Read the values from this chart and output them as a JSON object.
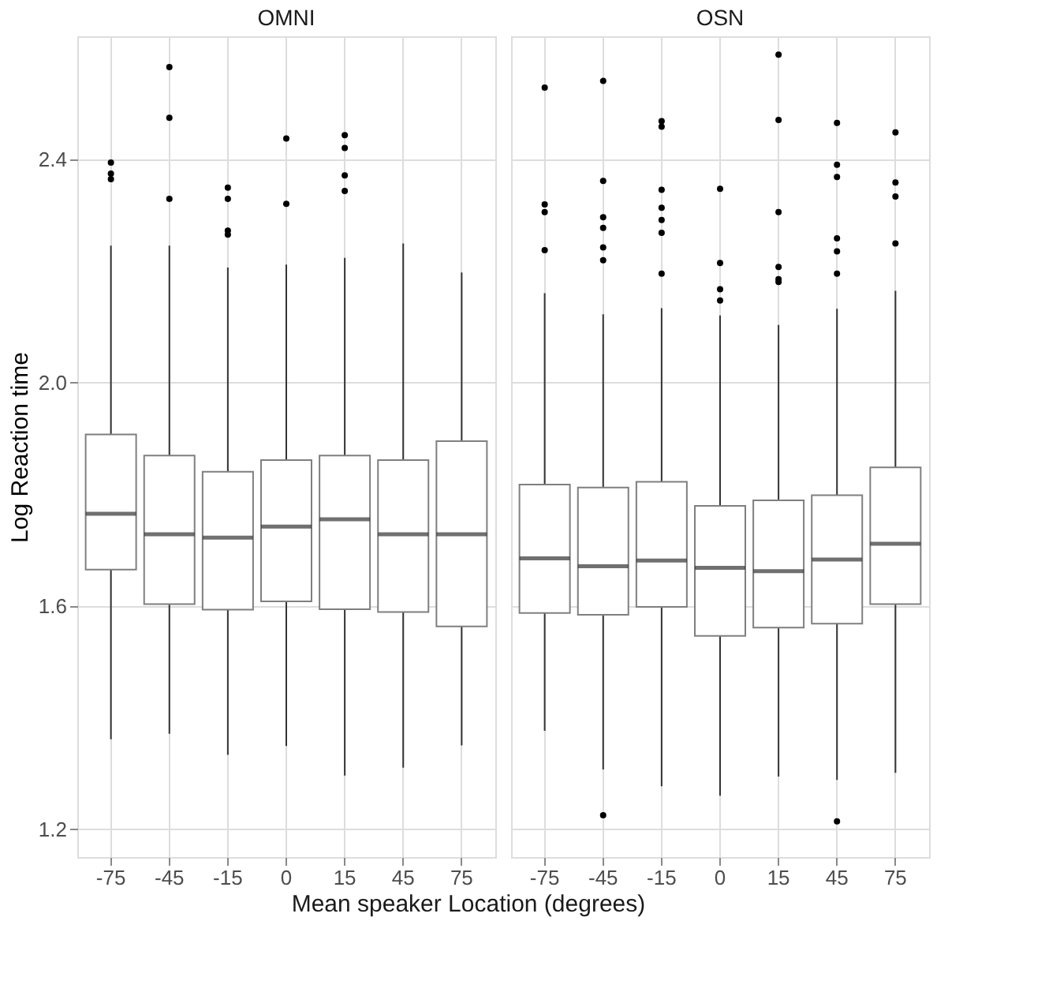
{
  "chart_data": [
    {
      "type": "box",
      "title": "OMNI",
      "xlabel": "Mean speaker Location (degrees)",
      "ylabel": "Log Reaction time",
      "categories": [
        "-75",
        "-45",
        "-15",
        "0",
        "15",
        "45",
        "75"
      ],
      "ylim": [
        1.15,
        2.62
      ],
      "yticks": [
        1.2,
        1.6,
        {
          "value": 2.0,
          "label": "2.0"
        },
        2.4
      ],
      "grid": true,
      "boxes": [
        {
          "low": 1.361,
          "q1": 1.665,
          "median": 1.765,
          "q3": 1.907,
          "high": 2.245,
          "outliers": [
            2.394,
            2.374,
            2.364
          ]
        },
        {
          "low": 1.371,
          "q1": 1.603,
          "median": 1.728,
          "q3": 1.869,
          "high": 2.245,
          "outliers": [
            2.565,
            2.474,
            2.329
          ]
        },
        {
          "low": 1.333,
          "q1": 1.593,
          "median": 1.722,
          "q3": 1.84,
          "high": 2.206,
          "outliers": [
            2.349,
            2.329,
            2.272,
            2.265
          ]
        },
        {
          "low": 1.349,
          "q1": 1.608,
          "median": 1.742,
          "q3": 1.861,
          "high": 2.211,
          "outliers": [
            2.437,
            2.32
          ]
        },
        {
          "low": 1.296,
          "q1": 1.594,
          "median": 1.755,
          "q3": 1.869,
          "high": 2.223,
          "outliers": [
            2.443,
            2.42,
            2.371,
            2.343
          ]
        },
        {
          "low": 1.31,
          "q1": 1.589,
          "median": 1.728,
          "q3": 1.861,
          "high": 2.249
        },
        {
          "low": 1.35,
          "q1": 1.563,
          "median": 1.728,
          "q3": 1.895,
          "high": 2.197
        }
      ]
    },
    {
      "type": "box",
      "title": "OSN",
      "categories": [
        "-75",
        "-45",
        "-15",
        "0",
        "15",
        "45",
        "75"
      ],
      "ylim": [
        1.15,
        2.62
      ],
      "yticks": [
        1.2,
        1.6,
        2.0,
        2.4
      ],
      "grid": true,
      "tick_labels": "x",
      "boxes": [
        {
          "low": 1.376,
          "q1": 1.587,
          "median": 1.685,
          "q3": 1.817,
          "high": 2.16,
          "outliers": [
            2.528,
            2.319,
            2.305,
            2.237
          ]
        },
        {
          "low": 1.307,
          "q1": 1.584,
          "median": 1.671,
          "q3": 1.812,
          "high": 2.122,
          "outliers": [
            2.54,
            2.361,
            2.296,
            2.277,
            2.242,
            2.219,
            1.225
          ]
        },
        {
          "low": 1.277,
          "q1": 1.598,
          "median": 1.681,
          "q3": 1.822,
          "high": 2.133,
          "outliers": [
            2.468,
            2.458,
            2.345,
            2.313,
            2.291,
            2.268,
            2.195
          ]
        },
        {
          "low": 1.26,
          "q1": 1.546,
          "median": 1.668,
          "q3": 1.779,
          "high": 2.12,
          "outliers": [
            2.347,
            2.214,
            2.167,
            2.147
          ]
        },
        {
          "low": 1.294,
          "q1": 1.561,
          "median": 1.662,
          "q3": 1.789,
          "high": 2.103,
          "outliers": [
            2.587,
            2.47,
            2.305,
            2.207,
            2.185,
            2.18
          ]
        },
        {
          "low": 1.288,
          "q1": 1.568,
          "median": 1.683,
          "q3": 1.798,
          "high": 2.132,
          "outliers": [
            2.465,
            2.39,
            2.368,
            2.258,
            2.235,
            2.195,
            1.214
          ]
        },
        {
          "low": 1.301,
          "q1": 1.603,
          "median": 1.711,
          "q3": 1.848,
          "high": 2.164,
          "outliers": [
            2.448,
            2.358,
            2.333,
            2.249
          ]
        }
      ]
    }
  ]
}
